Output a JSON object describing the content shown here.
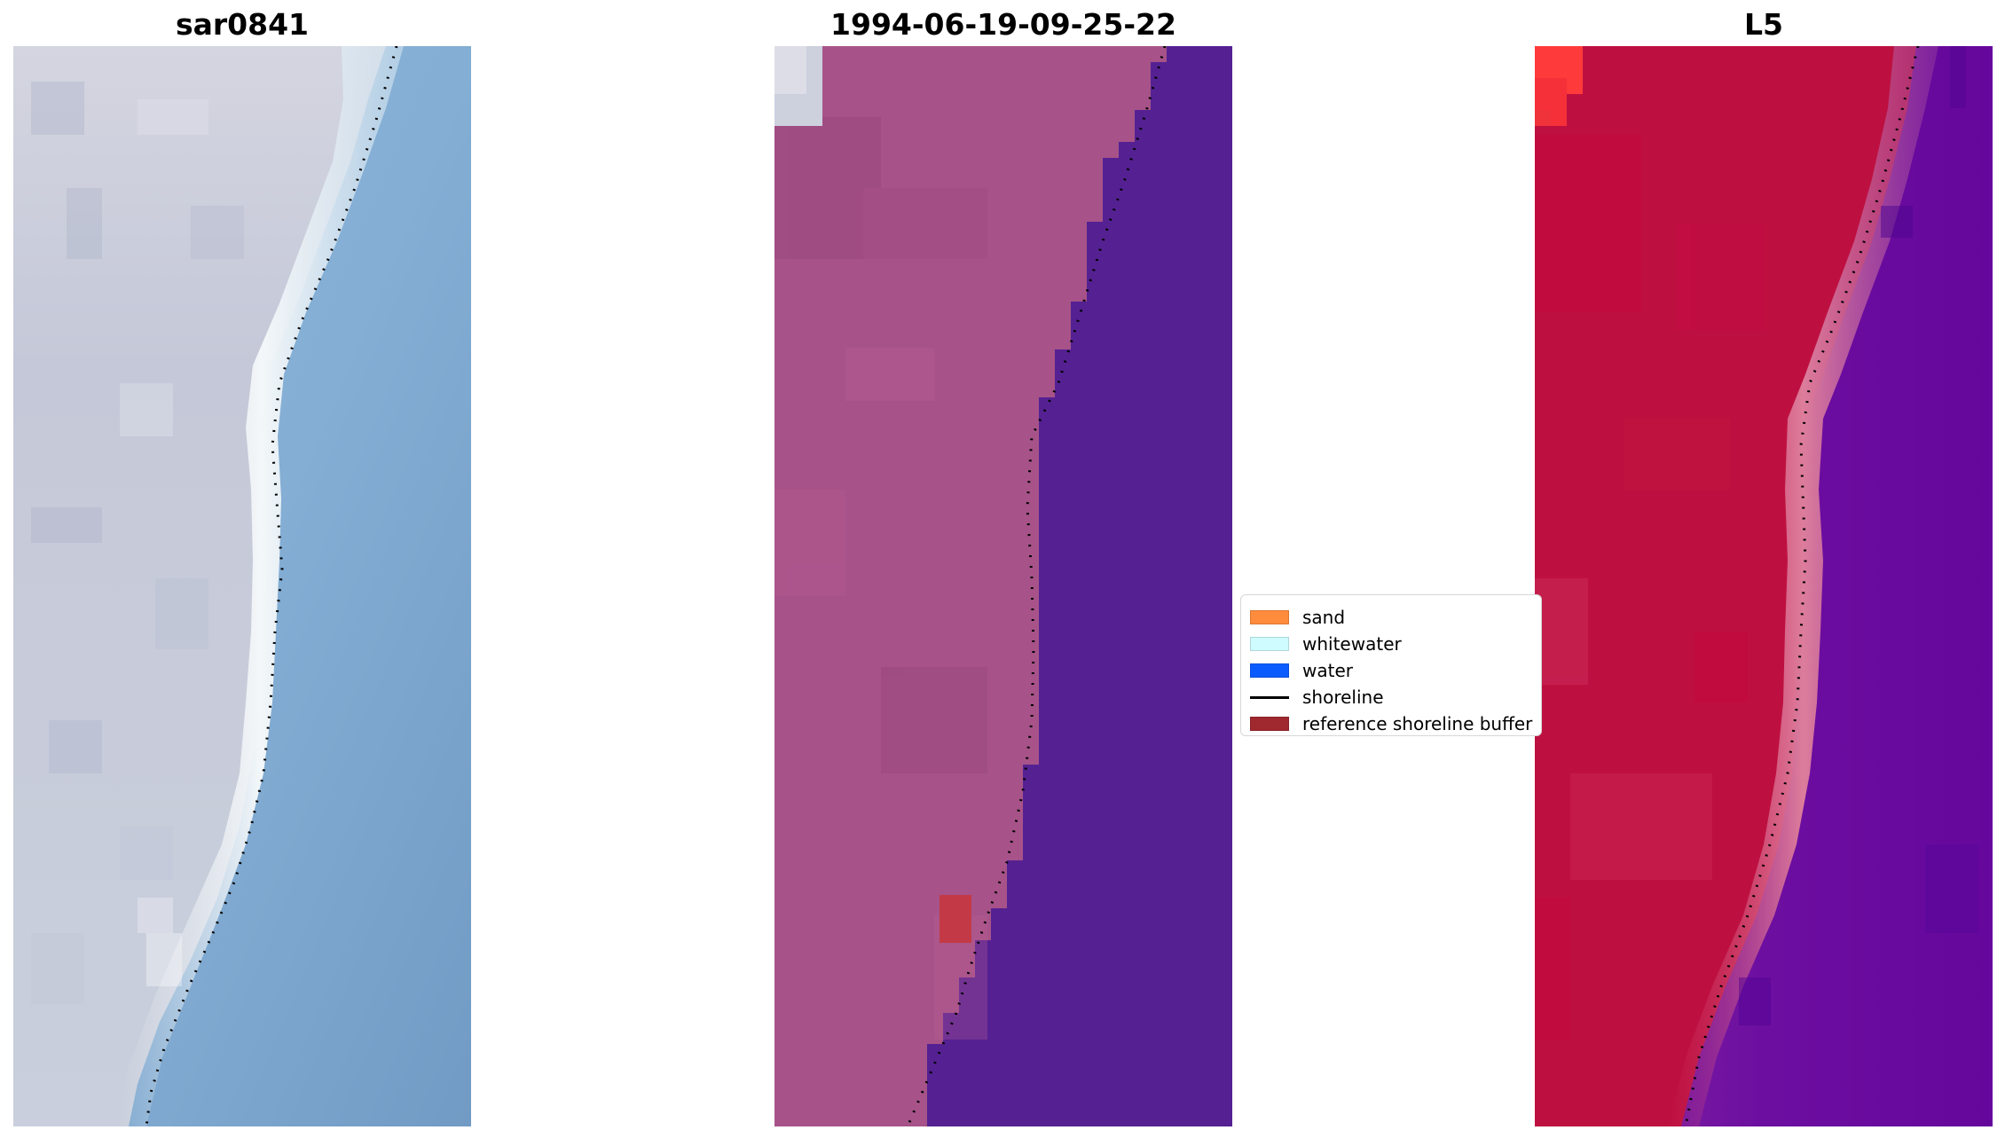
{
  "figure": {
    "panels": [
      {
        "title": "sar0841",
        "image": "RGB satellite image of beach with shoreline dots"
      },
      {
        "title": "1994-06-19-09-25-22",
        "image": "classified image: sand, water, reference shoreline buffer"
      },
      {
        "title": "L5",
        "image": "index image: land red, water purple"
      }
    ]
  },
  "legend": {
    "items": [
      {
        "label": "sand",
        "color": "#ff8c3d",
        "kind": "patch"
      },
      {
        "label": "whitewater",
        "color": "#cffcff",
        "kind": "patch"
      },
      {
        "label": "water",
        "color": "#0a5cff",
        "kind": "patch"
      },
      {
        "label": "shoreline",
        "color": "#000000",
        "kind": "line"
      },
      {
        "label": "reference shoreline buffer",
        "color": "#a0282f",
        "kind": "patch"
      }
    ]
  },
  "colors": {
    "rgb_land_light": "#dcdde6",
    "rgb_land_mid": "#b8bed2",
    "rgb_water": "#80a9cf",
    "class_land": "#a75389",
    "class_water": "#552192",
    "class_buffer": "#c33a46",
    "index_land": "#be1040",
    "index_beach": "#d7688a",
    "index_water": "#6b0d9e"
  }
}
